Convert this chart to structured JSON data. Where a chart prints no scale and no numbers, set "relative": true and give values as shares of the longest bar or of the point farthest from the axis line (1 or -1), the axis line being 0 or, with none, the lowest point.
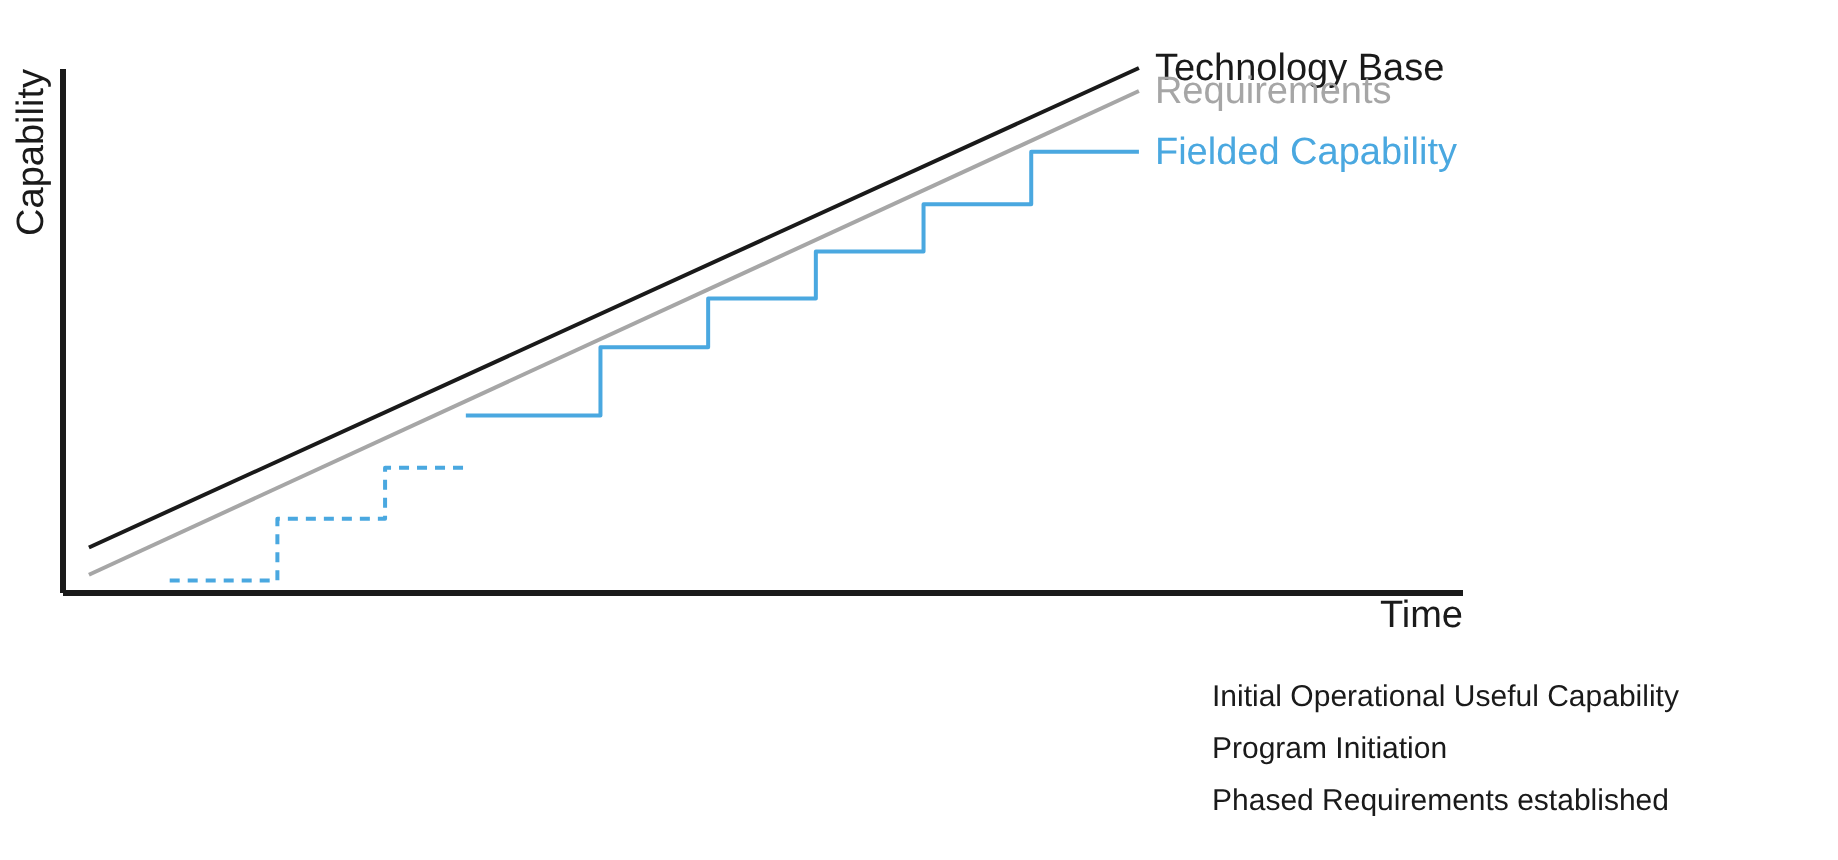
{
  "chart_data": {
    "type": "line",
    "relative": true,
    "tick_labels": false,
    "grid": false,
    "xlabel": "Time",
    "ylabel": "Capability",
    "categories": [
      null,
      null,
      null,
      null,
      null,
      null,
      null,
      null,
      null,
      null,
      null,
      null,
      null,
      null,
      null,
      null,
      null,
      null,
      null,
      null,
      null,
      null,
      null,
      null,
      null,
      null,
      null,
      null,
      null,
      null,
      null,
      null,
      null,
      null,
      null,
      null,
      null,
      null,
      null,
      null,
      null,
      null,
      null,
      null,
      null,
      null,
      null,
      null,
      null,
      null,
      null,
      null,
      null
    ],
    "series": [
      {
        "name": "Technology Base",
        "color": "#1a1a1a",
        "values": [
          null,
          0.085,
          null,
          null,
          null,
          null,
          null,
          null,
          null,
          null,
          null,
          null,
          null,
          null,
          null,
          null,
          null,
          null,
          null,
          null,
          null,
          null,
          null,
          null,
          null,
          null,
          null,
          null,
          null,
          null,
          null,
          null,
          null,
          null,
          null,
          null,
          null,
          null,
          null,
          null,
          1.0,
          null,
          null,
          null,
          null,
          null,
          null,
          null,
          null,
          null,
          null,
          null,
          null
        ]
      },
      {
        "name": "Requirements",
        "color": "#a6a6a6",
        "values": [
          null,
          0.033,
          null,
          null,
          null,
          null,
          null,
          null,
          null,
          null,
          null,
          null,
          null,
          null,
          null,
          null,
          null,
          null,
          null,
          null,
          null,
          null,
          null,
          null,
          null,
          null,
          null,
          null,
          null,
          null,
          null,
          null,
          null,
          null,
          null,
          null,
          null,
          null,
          null,
          null,
          0.956,
          null,
          null,
          null,
          null,
          null,
          null,
          null,
          null,
          null,
          null,
          null,
          null
        ]
      },
      {
        "color": "#4aa8e0",
        "type": "step",
        "line_style": "dashed",
        "values": [
          null,
          null,
          null,
          null,
          0.022,
          null,
          null,
          null,
          0.14,
          null,
          null,
          null,
          0.237,
          null,
          null,
          0.237,
          null,
          null,
          null,
          null,
          null,
          null,
          null,
          null,
          null,
          null,
          null,
          null,
          null,
          null,
          null,
          null,
          null,
          null,
          null,
          null,
          null,
          null,
          null,
          null,
          null,
          null,
          null,
          null,
          null,
          null,
          null,
          null,
          null,
          null,
          null,
          null,
          null
        ]
      },
      {
        "name": "Fielded Capability",
        "color": "#4aa8e0",
        "type": "step",
        "line_style": "solid",
        "values": [
          null,
          null,
          null,
          null,
          null,
          null,
          null,
          null,
          null,
          null,
          null,
          null,
          null,
          null,
          null,
          0.337,
          null,
          null,
          null,
          null,
          0.467,
          null,
          null,
          null,
          0.56,
          null,
          null,
          null,
          0.65,
          null,
          null,
          null,
          0.74,
          null,
          null,
          null,
          0.84,
          null,
          null,
          null,
          0.84,
          null,
          null,
          null,
          null,
          null,
          null,
          null,
          null,
          null,
          null,
          null,
          null
        ]
      }
    ],
    "annotations": [
      "Initial Operational Useful Capability",
      "Program Initiation",
      "Phased Requirements established"
    ]
  }
}
